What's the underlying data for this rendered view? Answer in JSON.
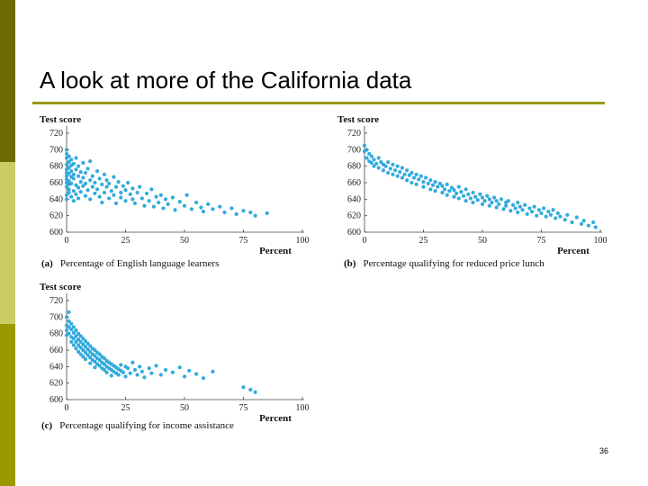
{
  "slide": {
    "title": "A look at more of the California data",
    "page_number": "36",
    "accent_color": "#999900",
    "sidebar_colors": [
      "#6b6b00",
      "#cccc66",
      "#999900"
    ]
  },
  "chart_data": [
    {
      "id": "a",
      "type": "scatter",
      "ylabel": "Test score",
      "xlabel": "Percent",
      "caption_tag": "(a)",
      "caption": "Percentage of English language learners",
      "xlim": [
        0,
        100
      ],
      "ylim": [
        600,
        720
      ],
      "xticks": [
        "0",
        "25",
        "50",
        "75",
        "100"
      ],
      "yticks": [
        "600",
        "620",
        "640",
        "660",
        "680",
        "700",
        "720"
      ],
      "color": "#33aadd",
      "points": [
        [
          0,
          668
        ],
        [
          0,
          682
        ],
        [
          0,
          655
        ],
        [
          0,
          700
        ],
        [
          0,
          645
        ],
        [
          0,
          690
        ],
        [
          0,
          672
        ],
        [
          0,
          660
        ],
        [
          0,
          640
        ],
        [
          0,
          695
        ],
        [
          0,
          676
        ],
        [
          0,
          664
        ],
        [
          1,
          685
        ],
        [
          1,
          658
        ],
        [
          1,
          671
        ],
        [
          1,
          648
        ],
        [
          1,
          692
        ],
        [
          1,
          662
        ],
        [
          1,
          678
        ],
        [
          1,
          652
        ],
        [
          2,
          688
        ],
        [
          2,
          667
        ],
        [
          2,
          643
        ],
        [
          2,
          681
        ],
        [
          2,
          659
        ],
        [
          2,
          674
        ],
        [
          3,
          665
        ],
        [
          3,
          650
        ],
        [
          3,
          683
        ],
        [
          3,
          638
        ],
        [
          3,
          670
        ],
        [
          4,
          676
        ],
        [
          4,
          657
        ],
        [
          4,
          690
        ],
        [
          4,
          646
        ],
        [
          5,
          668
        ],
        [
          5,
          654
        ],
        [
          5,
          680
        ],
        [
          5,
          641
        ],
        [
          6,
          661
        ],
        [
          6,
          673
        ],
        [
          6,
          649
        ],
        [
          7,
          684
        ],
        [
          7,
          656
        ],
        [
          7,
          666
        ],
        [
          8,
          644
        ],
        [
          8,
          672
        ],
        [
          8,
          659
        ],
        [
          9,
          651
        ],
        [
          9,
          677
        ],
        [
          10,
          663
        ],
        [
          10,
          640
        ],
        [
          10,
          686
        ],
        [
          11,
          655
        ],
        [
          11,
          668
        ],
        [
          12,
          647
        ],
        [
          12,
          660
        ],
        [
          13,
          674
        ],
        [
          13,
          652
        ],
        [
          14,
          643
        ],
        [
          14,
          665
        ],
        [
          15,
          658
        ],
        [
          15,
          636
        ],
        [
          16,
          670
        ],
        [
          16,
          648
        ],
        [
          17,
          655
        ],
        [
          17,
          663
        ],
        [
          18,
          641
        ],
        [
          18,
          659
        ],
        [
          19,
          650
        ],
        [
          20,
          667
        ],
        [
          20,
          645
        ],
        [
          21,
          655
        ],
        [
          21,
          635
        ],
        [
          22,
          661
        ],
        [
          23,
          648
        ],
        [
          23,
          642
        ],
        [
          24,
          656
        ],
        [
          25,
          638
        ],
        [
          25,
          651
        ],
        [
          26,
          660
        ],
        [
          27,
          646
        ],
        [
          28,
          640
        ],
        [
          28,
          653
        ],
        [
          29,
          635
        ],
        [
          30,
          648
        ],
        [
          31,
          655
        ],
        [
          32,
          641
        ],
        [
          33,
          632
        ],
        [
          34,
          647
        ],
        [
          35,
          638
        ],
        [
          36,
          652
        ],
        [
          37,
          631
        ],
        [
          38,
          643
        ],
        [
          39,
          636
        ],
        [
          40,
          645
        ],
        [
          41,
          629
        ],
        [
          42,
          640
        ],
        [
          43,
          634
        ],
        [
          45,
          642
        ],
        [
          46,
          627
        ],
        [
          48,
          637
        ],
        [
          50,
          632
        ],
        [
          51,
          645
        ],
        [
          53,
          628
        ],
        [
          55,
          636
        ],
        [
          57,
          630
        ],
        [
          58,
          625
        ],
        [
          60,
          634
        ],
        [
          62,
          628
        ],
        [
          65,
          631
        ],
        [
          67,
          624
        ],
        [
          70,
          629
        ],
        [
          72,
          622
        ],
        [
          75,
          626
        ],
        [
          78,
          624
        ],
        [
          80,
          620
        ],
        [
          85,
          623
        ]
      ]
    },
    {
      "id": "b",
      "type": "scatter",
      "ylabel": "Test score",
      "xlabel": "Percent",
      "caption_tag": "(b)",
      "caption": "Percentage qualifying for reduced price lunch",
      "xlim": [
        0,
        100
      ],
      "ylim": [
        600,
        720
      ],
      "xticks": [
        "0",
        "25",
        "50",
        "75",
        "100"
      ],
      "yticks": [
        "600",
        "620",
        "640",
        "660",
        "680",
        "700",
        "720"
      ],
      "color": "#33aadd",
      "points": [
        [
          0,
          698
        ],
        [
          0,
          705
        ],
        [
          1,
          690
        ],
        [
          1,
          700
        ],
        [
          2,
          686
        ],
        [
          2,
          695
        ],
        [
          3,
          684
        ],
        [
          3,
          692
        ],
        [
          4,
          680
        ],
        [
          4,
          688
        ],
        [
          5,
          683
        ],
        [
          6,
          678
        ],
        [
          6,
          690
        ],
        [
          7,
          685
        ],
        [
          8,
          675
        ],
        [
          8,
          682
        ],
        [
          9,
          680
        ],
        [
          10,
          672
        ],
        [
          10,
          685
        ],
        [
          11,
          677
        ],
        [
          12,
          670
        ],
        [
          12,
          682
        ],
        [
          13,
          675
        ],
        [
          14,
          668
        ],
        [
          14,
          680
        ],
        [
          15,
          673
        ],
        [
          16,
          666
        ],
        [
          16,
          678
        ],
        [
          17,
          670
        ],
        [
          18,
          675
        ],
        [
          18,
          663
        ],
        [
          19,
          669
        ],
        [
          20,
          672
        ],
        [
          20,
          660
        ],
        [
          21,
          666
        ],
        [
          22,
          670
        ],
        [
          22,
          658
        ],
        [
          23,
          664
        ],
        [
          24,
          668
        ],
        [
          25,
          661
        ],
        [
          25,
          655
        ],
        [
          26,
          666
        ],
        [
          27,
          659
        ],
        [
          28,
          663
        ],
        [
          28,
          652
        ],
        [
          29,
          657
        ],
        [
          30,
          661
        ],
        [
          30,
          650
        ],
        [
          31,
          655
        ],
        [
          32,
          659
        ],
        [
          33,
          648
        ],
        [
          33,
          656
        ],
        [
          34,
          652
        ],
        [
          35,
          645
        ],
        [
          35,
          658
        ],
        [
          36,
          650
        ],
        [
          37,
          654
        ],
        [
          38,
          643
        ],
        [
          38,
          651
        ],
        [
          39,
          647
        ],
        [
          40,
          655
        ],
        [
          40,
          641
        ],
        [
          41,
          649
        ],
        [
          42,
          644
        ],
        [
          43,
          652
        ],
        [
          43,
          638
        ],
        [
          44,
          646
        ],
        [
          45,
          641
        ],
        [
          46,
          648
        ],
        [
          46,
          636
        ],
        [
          47,
          643
        ],
        [
          48,
          639
        ],
        [
          49,
          646
        ],
        [
          50,
          634
        ],
        [
          50,
          642
        ],
        [
          51,
          638
        ],
        [
          52,
          644
        ],
        [
          53,
          632
        ],
        [
          53,
          640
        ],
        [
          54,
          636
        ],
        [
          55,
          642
        ],
        [
          56,
          630
        ],
        [
          56,
          638
        ],
        [
          57,
          634
        ],
        [
          58,
          640
        ],
        [
          59,
          628
        ],
        [
          60,
          636
        ],
        [
          60,
          632
        ],
        [
          61,
          638
        ],
        [
          62,
          626
        ],
        [
          63,
          633
        ],
        [
          64,
          629
        ],
        [
          65,
          636
        ],
        [
          65,
          624
        ],
        [
          66,
          631
        ],
        [
          67,
          627
        ],
        [
          68,
          633
        ],
        [
          69,
          622
        ],
        [
          70,
          629
        ],
        [
          71,
          625
        ],
        [
          72,
          631
        ],
        [
          73,
          620
        ],
        [
          74,
          627
        ],
        [
          75,
          623
        ],
        [
          76,
          629
        ],
        [
          77,
          619
        ],
        [
          78,
          625
        ],
        [
          79,
          621
        ],
        [
          80,
          627
        ],
        [
          81,
          617
        ],
        [
          82,
          623
        ],
        [
          83,
          619
        ],
        [
          85,
          615
        ],
        [
          86,
          621
        ],
        [
          88,
          612
        ],
        [
          90,
          618
        ],
        [
          92,
          610
        ],
        [
          93,
          614
        ],
        [
          95,
          608
        ],
        [
          97,
          612
        ],
        [
          98,
          606
        ]
      ]
    },
    {
      "id": "c",
      "type": "scatter",
      "ylabel": "Test score",
      "xlabel": "Percent",
      "caption_tag": "(c)",
      "caption": "Percentage qualifying for income assistance",
      "xlim": [
        0,
        100
      ],
      "ylim": [
        600,
        720
      ],
      "xticks": [
        "0",
        "25",
        "50",
        "75",
        "100"
      ],
      "yticks": [
        "600",
        "620",
        "640",
        "660",
        "680",
        "700",
        "720"
      ],
      "color": "#33aadd",
      "points": [
        [
          0,
          700
        ],
        [
          0,
          690
        ],
        [
          0,
          684
        ],
        [
          0,
          678
        ],
        [
          1,
          706
        ],
        [
          1,
          695
        ],
        [
          1,
          688
        ],
        [
          1,
          680
        ],
        [
          2,
          692
        ],
        [
          2,
          685
        ],
        [
          2,
          676
        ],
        [
          2,
          670
        ],
        [
          3,
          688
        ],
        [
          3,
          681
        ],
        [
          3,
          674
        ],
        [
          3,
          666
        ],
        [
          4,
          684
        ],
        [
          4,
          677
        ],
        [
          4,
          670
        ],
        [
          4,
          662
        ],
        [
          5,
          680
        ],
        [
          5,
          673
        ],
        [
          5,
          666
        ],
        [
          5,
          658
        ],
        [
          6,
          677
        ],
        [
          6,
          670
        ],
        [
          6,
          663
        ],
        [
          6,
          655
        ],
        [
          7,
          674
        ],
        [
          7,
          667
        ],
        [
          7,
          660
        ],
        [
          7,
          652
        ],
        [
          8,
          671
        ],
        [
          8,
          664
        ],
        [
          8,
          657
        ],
        [
          8,
          649
        ],
        [
          9,
          668
        ],
        [
          9,
          661
        ],
        [
          9,
          654
        ],
        [
          10,
          665
        ],
        [
          10,
          658
        ],
        [
          10,
          651
        ],
        [
          10,
          644
        ],
        [
          11,
          662
        ],
        [
          11,
          655
        ],
        [
          11,
          648
        ],
        [
          12,
          660
        ],
        [
          12,
          653
        ],
        [
          12,
          646
        ],
        [
          12,
          639
        ],
        [
          13,
          657
        ],
        [
          13,
          650
        ],
        [
          13,
          643
        ],
        [
          14,
          655
        ],
        [
          14,
          648
        ],
        [
          14,
          641
        ],
        [
          15,
          652
        ],
        [
          15,
          645
        ],
        [
          15,
          638
        ],
        [
          16,
          650
        ],
        [
          16,
          643
        ],
        [
          16,
          636
        ],
        [
          17,
          647
        ],
        [
          17,
          640
        ],
        [
          17,
          633
        ],
        [
          18,
          645
        ],
        [
          18,
          638
        ],
        [
          19,
          643
        ],
        [
          19,
          636
        ],
        [
          19,
          629
        ],
        [
          20,
          641
        ],
        [
          20,
          634
        ],
        [
          21,
          639
        ],
        [
          21,
          632
        ],
        [
          22,
          637
        ],
        [
          22,
          630
        ],
        [
          23,
          642
        ],
        [
          23,
          635
        ],
        [
          24,
          633
        ],
        [
          25,
          640
        ],
        [
          25,
          628
        ],
        [
          26,
          638
        ],
        [
          27,
          632
        ],
        [
          28,
          645
        ],
        [
          29,
          636
        ],
        [
          30,
          630
        ],
        [
          31,
          640
        ],
        [
          32,
          634
        ],
        [
          33,
          627
        ],
        [
          35,
          638
        ],
        [
          36,
          632
        ],
        [
          38,
          641
        ],
        [
          40,
          630
        ],
        [
          42,
          636
        ],
        [
          45,
          633
        ],
        [
          48,
          639
        ],
        [
          50,
          628
        ],
        [
          52,
          635
        ],
        [
          55,
          631
        ],
        [
          58,
          626
        ],
        [
          62,
          634
        ],
        [
          75,
          615
        ],
        [
          78,
          612
        ],
        [
          80,
          609
        ]
      ]
    }
  ]
}
